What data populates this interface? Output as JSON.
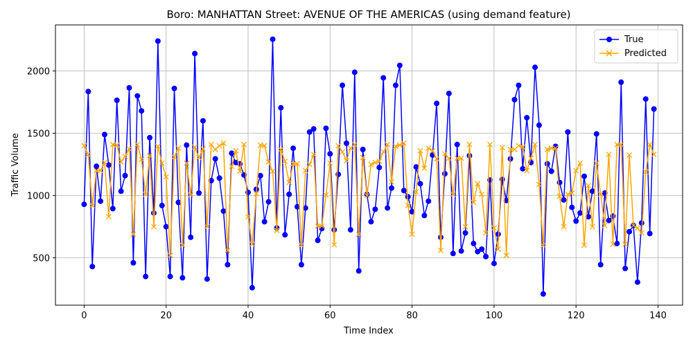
{
  "chart_data": {
    "type": "line",
    "title": "Boro: MANHATTAN Street: AVENUE OF THE AMERICAS (using demand feature)",
    "xlabel": "Time Index",
    "ylabel": "Traffic Volume",
    "xlim": [
      -7,
      146
    ],
    "ylim": [
      120,
      2370
    ],
    "xticks": [
      0,
      20,
      40,
      60,
      80,
      100,
      120,
      140
    ],
    "yticks": [
      500,
      1000,
      1500,
      2000
    ],
    "grid": true,
    "legend_position": "top-right",
    "x": [
      0,
      1,
      2,
      3,
      4,
      5,
      6,
      7,
      8,
      9,
      10,
      11,
      12,
      13,
      14,
      15,
      16,
      17,
      18,
      19,
      20,
      21,
      22,
      23,
      24,
      25,
      26,
      27,
      28,
      29,
      30,
      31,
      32,
      33,
      34,
      35,
      36,
      37,
      38,
      39,
      40,
      41,
      42,
      43,
      44,
      45,
      46,
      47,
      48,
      49,
      50,
      51,
      52,
      53,
      54,
      55,
      56,
      57,
      58,
      59,
      60,
      61,
      62,
      63,
      64,
      65,
      66,
      67,
      68,
      69,
      70,
      71,
      72,
      73,
      74,
      75,
      76,
      77,
      78,
      79,
      80,
      81,
      82,
      83,
      84,
      85,
      86,
      87,
      88,
      89,
      90,
      91,
      92,
      93,
      94,
      95,
      96,
      97,
      98,
      99,
      100,
      101,
      102,
      103,
      104,
      105,
      106,
      107,
      108,
      109,
      110,
      111,
      112,
      113,
      114,
      115,
      116,
      117,
      118,
      119,
      120,
      121,
      122,
      123,
      124,
      125,
      126,
      127,
      128,
      129,
      130,
      131,
      132,
      133,
      134,
      135,
      136,
      137,
      138,
      139
    ],
    "series": [
      {
        "name": "True",
        "color": "#0000ff",
        "marker": "circle",
        "values": [
          930,
          1835,
          430,
          1235,
          955,
          1490,
          1245,
          895,
          1765,
          1035,
          1160,
          1865,
          460,
          1800,
          1680,
          350,
          1465,
          860,
          2240,
          920,
          750,
          350,
          1860,
          945,
          340,
          1405,
          665,
          2140,
          1020,
          1600,
          330,
          1120,
          1295,
          1140,
          875,
          445,
          1340,
          1265,
          1255,
          1165,
          1025,
          260,
          1050,
          1160,
          790,
          950,
          2255,
          740,
          1705,
          685,
          1010,
          1380,
          910,
          445,
          900,
          1510,
          1535,
          640,
          735,
          1540,
          1335,
          725,
          1170,
          1885,
          1420,
          725,
          1990,
          395,
          1370,
          1010,
          790,
          890,
          1225,
          1945,
          900,
          1060,
          1885,
          2045,
          1040,
          990,
          870,
          1230,
          1095,
          840,
          955,
          1325,
          1740,
          665,
          1175,
          1820,
          535,
          1410,
          555,
          700,
          1320,
          615,
          550,
          570,
          510,
          1125,
          455,
          690,
          1130,
          960,
          1295,
          1770,
          1885,
          1215,
          1625,
          1265,
          2030,
          1565,
          210,
          1255,
          1195,
          1395,
          1105,
          965,
          1510,
          905,
          795,
          860,
          1155,
          830,
          1035,
          1495,
          445,
          1020,
          800,
          835,
          615,
          1910,
          415,
          710,
          760,
          305,
          780,
          1775,
          695,
          1695
        ]
      },
      {
        "name": "Predicted",
        "color": "#ffa500",
        "marker": "x",
        "values": [
          1400,
          1330,
          920,
          1200,
          1200,
          1265,
          830,
          1410,
          1405,
          1270,
          1315,
          1375,
          690,
          1410,
          1290,
          1010,
          1320,
          750,
          1395,
          1260,
          1150,
          520,
          1310,
          1380,
          600,
          1260,
          1005,
          1390,
          1305,
          1375,
          750,
          1410,
          1370,
          1400,
          1420,
          560,
          1235,
          1360,
          1195,
          1410,
          830,
          610,
          1015,
          1405,
          1400,
          1270,
          1195,
          720,
          1370,
          1275,
          1105,
          1255,
          1255,
          600,
          1200,
          1250,
          1330,
          755,
          755,
          1005,
          1260,
          605,
          1400,
          1350,
          1280,
          1380,
          1410,
          690,
          1305,
          1000,
          1250,
          1265,
          1275,
          1350,
          1410,
          1110,
          1395,
          1405,
          1420,
          920,
          690,
          1030,
          1360,
          1220,
          1380,
          1360,
          1295,
          560,
          1335,
          1300,
          1010,
          1300,
          1300,
          750,
          1410,
          945,
          1095,
          1010,
          700,
          1410,
          740,
          570,
          1385,
          520,
          1370,
          1370,
          1400,
          1390,
          1200,
          1300,
          1410,
          1090,
          600,
          1370,
          1380,
          1380,
          995,
          750,
          1010,
          1020,
          1200,
          1260,
          600,
          1080,
          750,
          1260,
          1010,
          760,
          1330,
          610,
          1410,
          1410,
          610,
          1325,
          760,
          740,
          700,
          1190,
          1410,
          1330
        ]
      }
    ]
  }
}
